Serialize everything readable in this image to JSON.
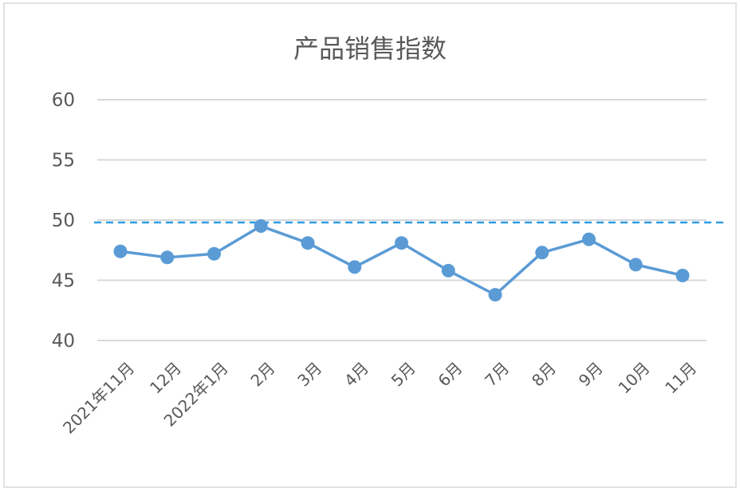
{
  "chart_data": {
    "type": "line",
    "title": "产品销售指数",
    "xlabel": "",
    "ylabel": "",
    "categories": [
      "2021年11月",
      "12月",
      "2022年1月",
      "2月",
      "3月",
      "4月",
      "5月",
      "6月",
      "7月",
      "8月",
      "9月",
      "10月",
      "11月"
    ],
    "series": [
      {
        "values": [
          47.4,
          46.9,
          47.2,
          49.5,
          48.1,
          46.1,
          48.1,
          45.8,
          43.8,
          47.3,
          48.4,
          46.3,
          45.4
        ]
      }
    ],
    "ylim": [
      40,
      60
    ],
    "yticks": [
      "40",
      "45",
      "50",
      "55",
      "60"
    ],
    "reference_line": 49.8,
    "grid": true,
    "legend": "none",
    "colors": {
      "series": "#5b9bd5",
      "reference": "#2e9ce6",
      "grid": "#d9d9d9",
      "text": "#595959"
    }
  }
}
